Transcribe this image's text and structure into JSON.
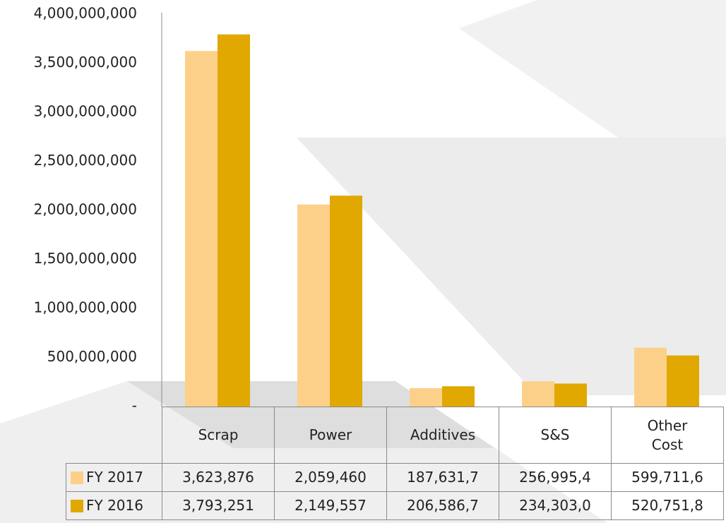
{
  "chart_data": {
    "type": "bar",
    "categories": [
      "Scrap",
      "Power",
      "Additives",
      "S&S",
      "Other Cost"
    ],
    "series": [
      {
        "name": "FY 2017",
        "color": "#fdd08a",
        "values": [
          3623876000,
          2059460000,
          187631700,
          256995400,
          599711600
        ],
        "value_labels": [
          "3,623,876",
          "2,059,460",
          "187,631,7",
          "256,995,4",
          "599,711,6"
        ]
      },
      {
        "name": "FY 2016",
        "color": "#e0a800",
        "values": [
          3793251000,
          2149557000,
          206586700,
          234303000,
          520751800
        ],
        "value_labels": [
          "3,793,251",
          "2,149,557",
          "206,586,7",
          "234,303,0",
          "520,751,8"
        ]
      }
    ],
    "ylim": [
      0,
      4000000000
    ],
    "yticks": [
      {
        "value": 0,
        "label": "-"
      },
      {
        "value": 500000000,
        "label": "500,000,000"
      },
      {
        "value": 1000000000,
        "label": "1,000,000,000"
      },
      {
        "value": 1500000000,
        "label": "1,500,000,000"
      },
      {
        "value": 2000000000,
        "label": "2,000,000,000"
      },
      {
        "value": 2500000000,
        "label": "2,500,000,000"
      },
      {
        "value": 3000000000,
        "label": "3,000,000,000"
      },
      {
        "value": 3500000000,
        "label": "3,500,000,000"
      },
      {
        "value": 4000000000,
        "label": "4,000,000,000"
      }
    ],
    "grid": false,
    "data_table": true
  }
}
